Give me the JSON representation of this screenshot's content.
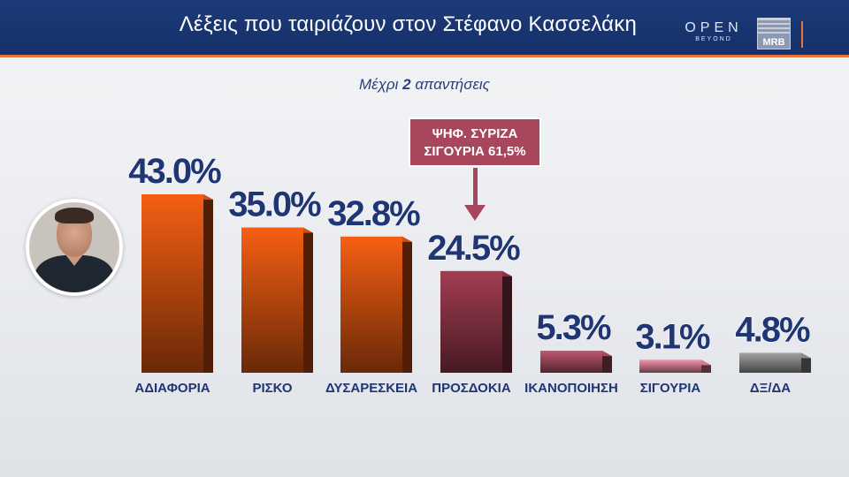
{
  "header": {
    "title": "Λέξεις που ταιριάζουν στον Στέφανο Κασσελάκη",
    "logo_open": "OPEN",
    "logo_open_sub": "BEYOND",
    "logo_mrb": "MRB"
  },
  "subtitle": {
    "prefix": "Μέχρι ",
    "bold": "2",
    "suffix": " απαντήσεις"
  },
  "callout": {
    "line1": "ΨΗΦ. ΣΥΡΙΖΑ",
    "line2": "ΣΙΓΟΥΡΙΑ 61,5%"
  },
  "chart_data": {
    "type": "bar",
    "title": "Λέξεις που ταιριάζουν στον Στέφανο Κασσελάκη",
    "subtitle": "Μέχρι 2 απαντήσεις",
    "categories": [
      "ΑΔΙΑΦΟΡΙΑ",
      "ΡΙΣΚΟ",
      "ΔΥΣΑΡΕΣΚΕΙΑ",
      "ΠΡΟΣΔΟΚΙΑ",
      "ΙΚΑΝΟΠΟΙΗΣΗ",
      "ΣΙΓΟΥΡΙΑ",
      "ΔΞ/ΔΑ"
    ],
    "values": [
      43.0,
      35.0,
      32.8,
      24.5,
      5.3,
      3.1,
      4.8
    ],
    "labels": [
      "43.0%",
      "35.0%",
      "32.8%",
      "24.5%",
      "5.3%",
      "3.1%",
      "4.8%"
    ],
    "colors": [
      "#ea5a12",
      "#ea5a12",
      "#ea5a12",
      "#9b3a4e",
      "#b5546a",
      "#e88aa0",
      "#9a9a9a"
    ],
    "unit": "%",
    "ylim": [
      0,
      43.0
    ],
    "grid": false,
    "legend": "none"
  }
}
